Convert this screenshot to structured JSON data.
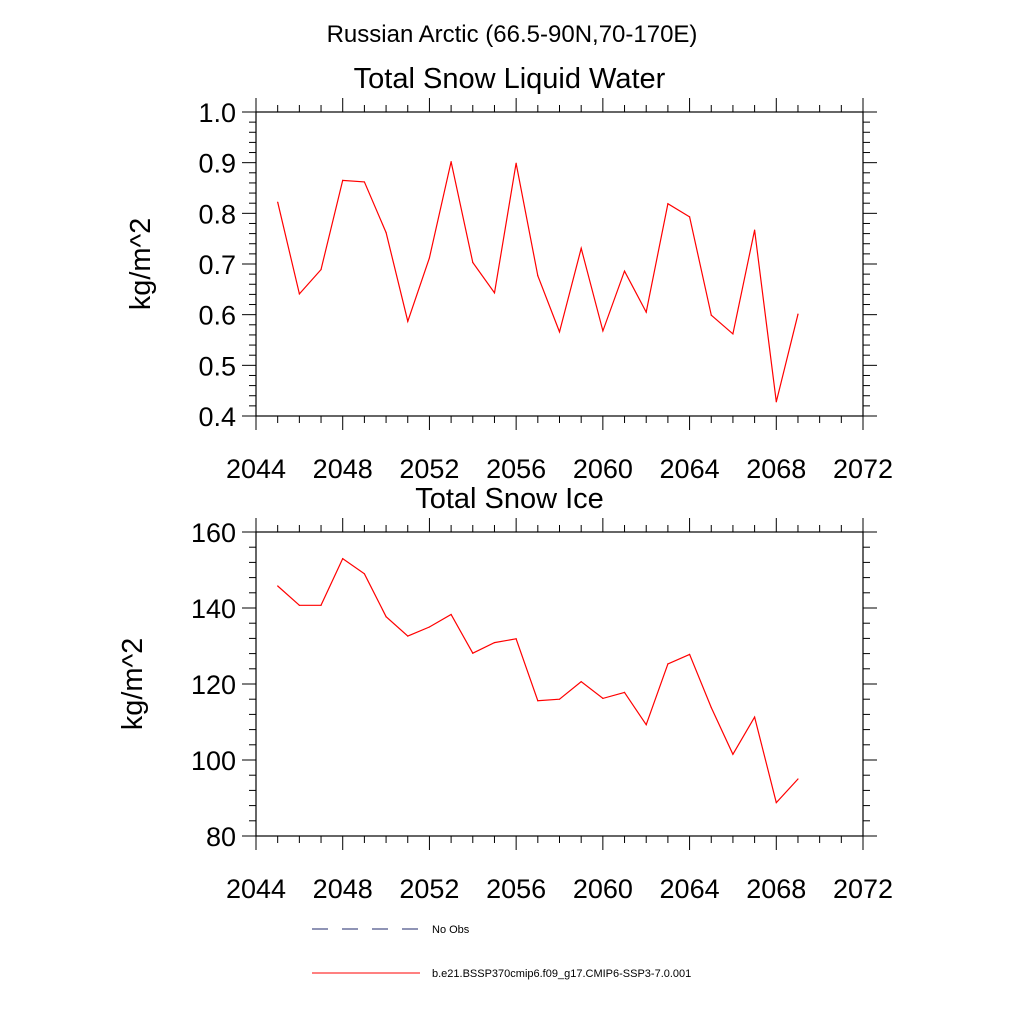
{
  "figure": {
    "suptitle": "Russian Arctic (66.5-90N,70-170E)"
  },
  "legend": {
    "placement": "bottom",
    "entries": [
      {
        "label": "No Obs",
        "color": "#1f2a6b",
        "style": "dashed"
      },
      {
        "label": "b.e21.BSSP370cmip6.f09_g17.CMIP6-SSP3-7.0.001",
        "color": "#ff0000",
        "style": "solid"
      }
    ]
  },
  "chart_data": [
    {
      "type": "line",
      "title": "Total Snow Liquid Water",
      "xlabel": "",
      "ylabel": "kg/m^2",
      "xlim": [
        2044,
        2072
      ],
      "ylim": [
        0.4,
        1.0
      ],
      "xticks": [
        "2044",
        "2048",
        "2052",
        "2056",
        "2060",
        "2064",
        "2068",
        "2072"
      ],
      "yticks": [
        "0.4",
        "0.5",
        "0.6",
        "0.7",
        "0.8",
        "0.9",
        "1.0"
      ],
      "grid": false,
      "series": [
        {
          "name": "b.e21.BSSP370cmip6.f09_g17.CMIP6-SSP3-7.0.001",
          "color": "#ff0000",
          "x": [
            2045,
            2046,
            2047,
            2048,
            2049,
            2050,
            2051,
            2052,
            2053,
            2054,
            2055,
            2056,
            2057,
            2058,
            2059,
            2060,
            2061,
            2062,
            2063,
            2064,
            2065,
            2066,
            2067,
            2068,
            2069
          ],
          "y": [
            0.822,
            0.641,
            0.689,
            0.865,
            0.862,
            0.762,
            0.587,
            0.712,
            0.902,
            0.703,
            0.643,
            0.899,
            0.677,
            0.566,
            0.731,
            0.568,
            0.686,
            0.605,
            0.819,
            0.793,
            0.599,
            0.562,
            0.767,
            0.428,
            0.601
          ]
        }
      ]
    },
    {
      "type": "line",
      "title": "Total Snow Ice",
      "xlabel": "",
      "ylabel": "kg/m^2",
      "xlim": [
        2044,
        2072
      ],
      "ylim": [
        80,
        160
      ],
      "xticks": [
        "2044",
        "2048",
        "2052",
        "2056",
        "2060",
        "2064",
        "2068",
        "2072"
      ],
      "yticks": [
        "80",
        "100",
        "120",
        "140",
        "160"
      ],
      "grid": false,
      "series": [
        {
          "name": "b.e21.BSSP370cmip6.f09_g17.CMIP6-SSP3-7.0.001",
          "color": "#ff0000",
          "x": [
            2045,
            2046,
            2047,
            2048,
            2049,
            2050,
            2051,
            2052,
            2053,
            2054,
            2055,
            2056,
            2057,
            2058,
            2059,
            2060,
            2061,
            2062,
            2063,
            2064,
            2065,
            2066,
            2067,
            2068,
            2069
          ],
          "y": [
            145.8,
            140.7,
            140.7,
            153.0,
            149.0,
            137.7,
            132.6,
            135.0,
            138.3,
            128.1,
            130.9,
            131.9,
            115.6,
            116.0,
            120.6,
            116.2,
            117.8,
            109.3,
            125.3,
            127.8,
            113.8,
            101.5,
            111.3,
            88.8,
            95.0
          ]
        }
      ]
    }
  ]
}
